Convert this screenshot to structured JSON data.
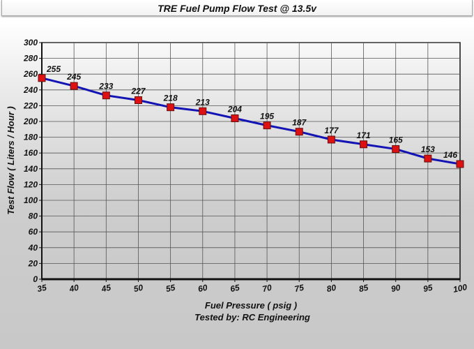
{
  "chart_data": {
    "type": "line",
    "title": "TRE Fuel Pump Flow Test @ 13.5v",
    "xlabel": "Fuel Pressure ( psig )",
    "subtitle": "Tested by: RC Engineering",
    "ylabel": "Test Flow ( Liters / Hour )",
    "x": [
      35,
      40,
      45,
      50,
      55,
      60,
      65,
      70,
      75,
      80,
      85,
      90,
      95,
      100
    ],
    "series": [
      {
        "values": [
          255,
          245,
          233,
          227,
          218,
          213,
          204,
          195,
          187,
          177,
          171,
          165,
          153,
          146
        ]
      }
    ],
    "xlim": [
      35,
      100
    ],
    "ylim": [
      0,
      300
    ],
    "xticks": [
      35,
      40,
      45,
      50,
      55,
      60,
      65,
      70,
      75,
      80,
      85,
      90,
      95,
      100
    ],
    "yticks": [
      0,
      20,
      40,
      60,
      80,
      100,
      120,
      140,
      160,
      180,
      200,
      220,
      240,
      260,
      280,
      300
    ],
    "grid": true,
    "data_labels": true,
    "colors": {
      "line": "#1414b4",
      "marker": "#dd1111",
      "marker_border": "#661111"
    }
  }
}
